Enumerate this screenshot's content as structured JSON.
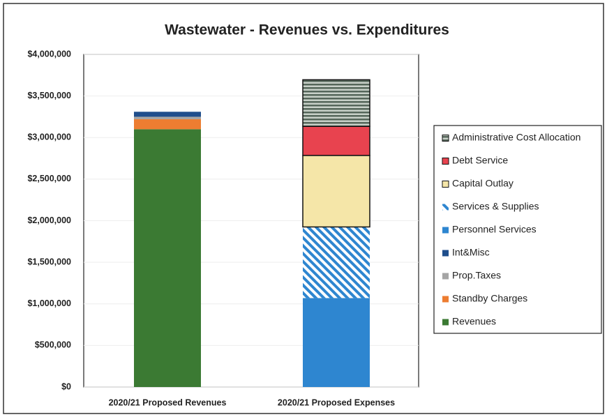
{
  "chart_data": {
    "type": "stacked-bar",
    "title": "Wastewater - Revenues vs. Expenditures",
    "categories": [
      "2020/21 Proposed Revenues",
      "2020/21 Proposed Expenses"
    ],
    "series": [
      {
        "name": "Revenues",
        "color": "#3b7a33",
        "values": [
          3100000,
          null
        ]
      },
      {
        "name": "Standby Charges",
        "color": "#ed7d31",
        "values": [
          120000,
          null
        ]
      },
      {
        "name": "Prop.Taxes",
        "color": "#a5a5a5",
        "values": [
          30000,
          null
        ]
      },
      {
        "name": "Int&Misc",
        "color": "#1f4e8c",
        "values": [
          60000,
          null
        ]
      },
      {
        "name": "Personnel Services",
        "color": "#2e86d0",
        "values": [
          null,
          1070000
        ]
      },
      {
        "name": "Services & Supplies",
        "color": "#2e86d0",
        "hatch": true,
        "values": [
          null,
          855000
        ]
      },
      {
        "name": "Capital Outlay",
        "color": "#f5e6a8",
        "outline": true,
        "values": [
          null,
          860000
        ]
      },
      {
        "name": "Debt Service",
        "color": "#e8434f",
        "outline": true,
        "values": [
          null,
          350000
        ]
      },
      {
        "name": "Administrative Cost Allocation",
        "color": "#55665a",
        "hatch": true,
        "outline": true,
        "values": [
          null,
          560000
        ]
      }
    ],
    "ylim": [
      0,
      4000000
    ],
    "yticks": [
      {
        "value": 0,
        "label": "$0"
      },
      {
        "value": 500000,
        "label": "$500,000"
      },
      {
        "value": 1000000,
        "label": "$1,000,000"
      },
      {
        "value": 1500000,
        "label": "$1,500,000"
      },
      {
        "value": 2000000,
        "label": "$2,000,000"
      },
      {
        "value": 2500000,
        "label": "$2,500,000"
      },
      {
        "value": 3000000,
        "label": "$3,000,000"
      },
      {
        "value": 3500000,
        "label": "$3,500,000"
      },
      {
        "value": 4000000,
        "label": "$4,000,000"
      }
    ],
    "grid": true,
    "legend": "right"
  }
}
